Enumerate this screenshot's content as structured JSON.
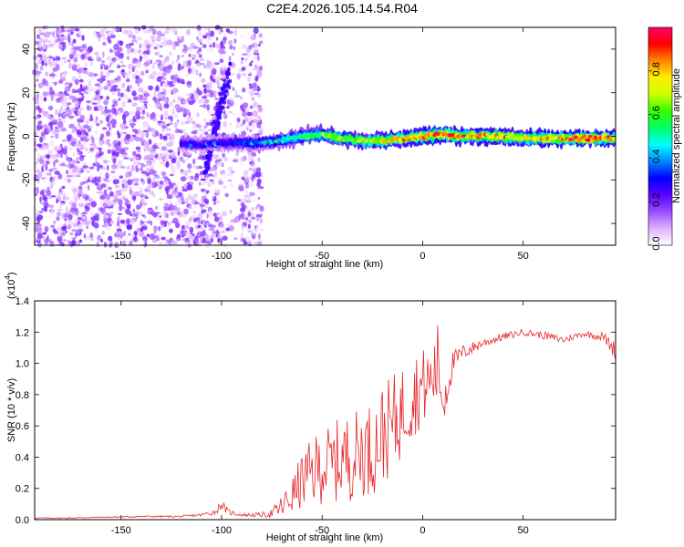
{
  "figure_title": "C2E4.2026.105.14.54.R04",
  "chart_data": [
    {
      "type": "heatmap",
      "title": "C2E4.2026.105.14.54.R04",
      "xlabel": "Height of straight line (km)",
      "ylabel": "Frequency (Hz)",
      "xlim": [
        -193,
        96
      ],
      "ylim": [
        -50,
        50
      ],
      "xticks": [
        -150,
        -100,
        -50,
        0,
        50
      ],
      "yticks": [
        -40,
        -20,
        0,
        20,
        40
      ],
      "colorbar": {
        "label": "Normalized spectral amplitude",
        "range": [
          0.0,
          1.0
        ],
        "ticks": [
          0.0,
          0.2,
          0.4,
          0.6,
          0.8
        ],
        "colormap": [
          "#ffffff",
          "#e0b0ff",
          "#9a4dff",
          "#5a00ff",
          "#0000ff",
          "#0088ff",
          "#00ffff",
          "#00ff66",
          "#33ff00",
          "#ccff00",
          "#ffee00",
          "#ff8800",
          "#ff0000",
          "#ff0066"
        ]
      },
      "noise_region_km": [
        -193,
        -80
      ],
      "signal_line": {
        "x": [
          -120,
          -110,
          -100,
          -90,
          -80,
          -70,
          -60,
          -50,
          -40,
          -30,
          -20,
          -10,
          0,
          10,
          20,
          30,
          40,
          50,
          60,
          70,
          80,
          90,
          96
        ],
        "frequency": [
          -3,
          -4,
          -3,
          -3,
          -3,
          -2,
          0,
          1,
          -1,
          -2,
          -2,
          -1,
          0,
          1,
          0,
          0,
          0,
          -1,
          -1,
          -1,
          -1,
          -1,
          -1
        ],
        "amplitude": [
          0.3,
          0.3,
          0.3,
          0.35,
          0.4,
          0.5,
          0.6,
          0.65,
          0.7,
          0.75,
          0.8,
          0.85,
          0.9,
          0.95,
          0.9,
          0.85,
          0.85,
          0.8,
          0.85,
          0.9,
          0.95,
          0.95,
          0.8
        ]
      }
    },
    {
      "type": "line",
      "title": "",
      "xlabel": "Height of straight line (km)",
      "ylabel": "SNR (10 * v/v)",
      "multiplier_label": "(x10",
      "multiplier_exponent": "4",
      "multiplier_close": ")",
      "xlim": [
        -193,
        96
      ],
      "ylim": [
        0,
        1.4
      ],
      "xticks": [
        -150,
        -100,
        -50,
        0,
        50
      ],
      "yticks": [
        0.0,
        0.2,
        0.4,
        0.6,
        0.8,
        1.0,
        1.2,
        1.4
      ],
      "line_color": "#e8262a",
      "series": [
        {
          "name": "SNR",
          "x": [
            -193,
            -180,
            -160,
            -140,
            -120,
            -110,
            -103,
            -100,
            -97,
            -90,
            -80,
            -75,
            -70,
            -65,
            -60,
            -55,
            -50,
            -45,
            -40,
            -35,
            -30,
            -25,
            -20,
            -15,
            -10,
            -5,
            0,
            5,
            8,
            10,
            12,
            15,
            20,
            25,
            30,
            40,
            50,
            60,
            70,
            80,
            90,
            96
          ],
          "y": [
            0.01,
            0.01,
            0.015,
            0.02,
            0.02,
            0.03,
            0.05,
            0.1,
            0.05,
            0.03,
            0.03,
            0.04,
            0.08,
            0.15,
            0.25,
            0.3,
            0.35,
            0.35,
            0.4,
            0.4,
            0.45,
            0.45,
            0.55,
            0.6,
            0.7,
            0.8,
            0.85,
            0.9,
            1.0,
            0.75,
            0.85,
            1.0,
            1.07,
            1.1,
            1.13,
            1.17,
            1.2,
            1.18,
            1.15,
            1.19,
            1.17,
            1.08
          ],
          "jitter": [
            0.004,
            0.004,
            0.004,
            0.005,
            0.006,
            0.01,
            0.02,
            0.03,
            0.02,
            0.01,
            0.015,
            0.03,
            0.08,
            0.12,
            0.18,
            0.22,
            0.25,
            0.25,
            0.28,
            0.28,
            0.3,
            0.3,
            0.32,
            0.32,
            0.3,
            0.28,
            0.25,
            0.22,
            0.3,
            0.2,
            0.15,
            0.08,
            0.05,
            0.04,
            0.03,
            0.025,
            0.02,
            0.025,
            0.025,
            0.02,
            0.03,
            0.06
          ]
        }
      ]
    }
  ]
}
